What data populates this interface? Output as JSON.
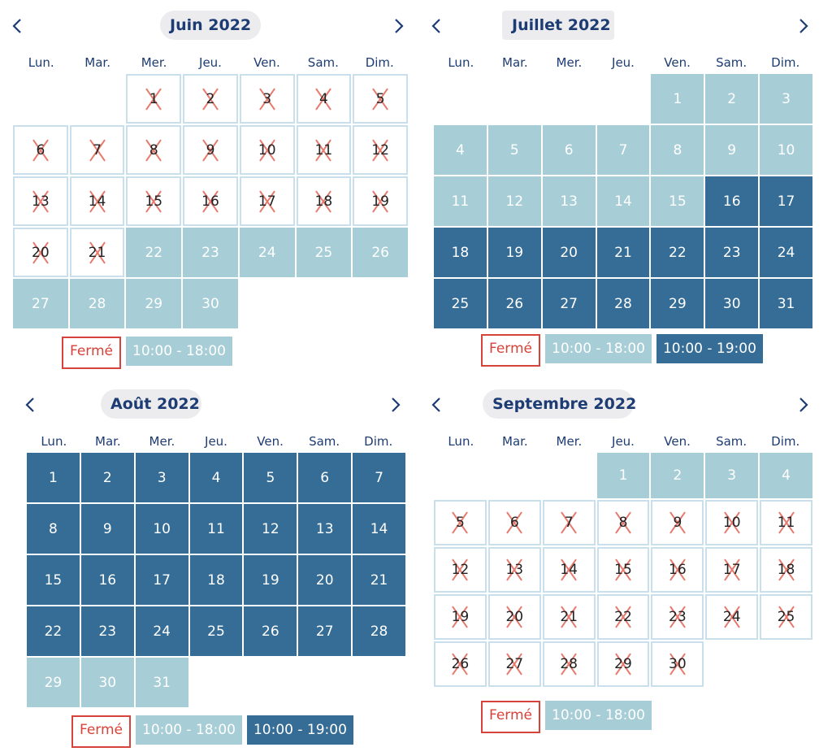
{
  "weekdays": [
    "Lun.",
    "Mar.",
    "Mer.",
    "Jeu.",
    "Ven.",
    "Sam.",
    "Dim."
  ],
  "legend": {
    "closed": "Fermé",
    "light": "10:00 - 18:00",
    "dark": "10:00 - 19:00"
  },
  "colors": {
    "closed_border": "#d6433a",
    "cross": "#e67a6e",
    "light": "#a7cdd6",
    "dark": "#366d96",
    "title_text": "#1d3c73",
    "title_bg": "#ececef"
  },
  "months": [
    {
      "title": "Juin 2022",
      "offset": 2,
      "days": [
        "1",
        "2",
        "3",
        "4",
        "5",
        "6",
        "7",
        "8",
        "9",
        "10",
        "11",
        "12",
        "13",
        "14",
        "15",
        "16",
        "17",
        "18",
        "19",
        "20",
        "21",
        "22",
        "23",
        "24",
        "25",
        "26",
        "27",
        "28",
        "29",
        "30"
      ],
      "status": [
        "c",
        "c",
        "c",
        "c",
        "c",
        "c",
        "c",
        "c",
        "c",
        "c",
        "c",
        "c",
        "c",
        "c",
        "c",
        "c",
        "c",
        "c",
        "c",
        "c",
        "c",
        "l",
        "l",
        "l",
        "l",
        "l",
        "l",
        "l",
        "l",
        "l"
      ],
      "legend": [
        "closed",
        "light"
      ]
    },
    {
      "title": "Juillet 2022",
      "offset": 4,
      "days": [
        "1",
        "2",
        "3",
        "4",
        "5",
        "6",
        "7",
        "8",
        "9",
        "10",
        "11",
        "12",
        "13",
        "14",
        "15",
        "16",
        "17",
        "18",
        "19",
        "20",
        "21",
        "22",
        "23",
        "24",
        "25",
        "26",
        "27",
        "28",
        "29",
        "30",
        "31"
      ],
      "status": [
        "l",
        "l",
        "l",
        "l",
        "l",
        "l",
        "l",
        "l",
        "l",
        "l",
        "l",
        "l",
        "l",
        "l",
        "l",
        "d",
        "d",
        "d",
        "d",
        "d",
        "d",
        "d",
        "d",
        "d",
        "d",
        "d",
        "d",
        "d",
        "d",
        "d",
        "d"
      ],
      "legend": [
        "closed",
        "light",
        "dark"
      ]
    },
    {
      "title": "Août 2022",
      "offset": 0,
      "days": [
        "1",
        "2",
        "3",
        "4",
        "5",
        "6",
        "7",
        "8",
        "9",
        "10",
        "11",
        "12",
        "13",
        "14",
        "15",
        "16",
        "17",
        "18",
        "19",
        "20",
        "21",
        "22",
        "23",
        "24",
        "25",
        "26",
        "27",
        "28",
        "29",
        "30",
        "31"
      ],
      "status": [
        "d",
        "d",
        "d",
        "d",
        "d",
        "d",
        "d",
        "d",
        "d",
        "d",
        "d",
        "d",
        "d",
        "d",
        "d",
        "d",
        "d",
        "d",
        "d",
        "d",
        "d",
        "d",
        "d",
        "d",
        "d",
        "d",
        "d",
        "d",
        "l",
        "l",
        "l"
      ],
      "legend": [
        "closed",
        "light",
        "dark"
      ]
    },
    {
      "title": "Septembre 2022",
      "offset": 3,
      "days": [
        "1",
        "2",
        "3",
        "4",
        "5",
        "6",
        "7",
        "8",
        "9",
        "10",
        "11",
        "12",
        "13",
        "14",
        "15",
        "16",
        "17",
        "18",
        "19",
        "20",
        "21",
        "22",
        "23",
        "24",
        "25",
        "26",
        "27",
        "28",
        "29",
        "30"
      ],
      "status": [
        "l",
        "l",
        "l",
        "l",
        "c",
        "c",
        "c",
        "c",
        "c",
        "c",
        "c",
        "c",
        "c",
        "c",
        "c",
        "c",
        "c",
        "c",
        "c",
        "c",
        "c",
        "c",
        "c",
        "c",
        "c",
        "c",
        "c",
        "c",
        "c",
        "c"
      ],
      "legend": [
        "closed",
        "light"
      ]
    }
  ]
}
